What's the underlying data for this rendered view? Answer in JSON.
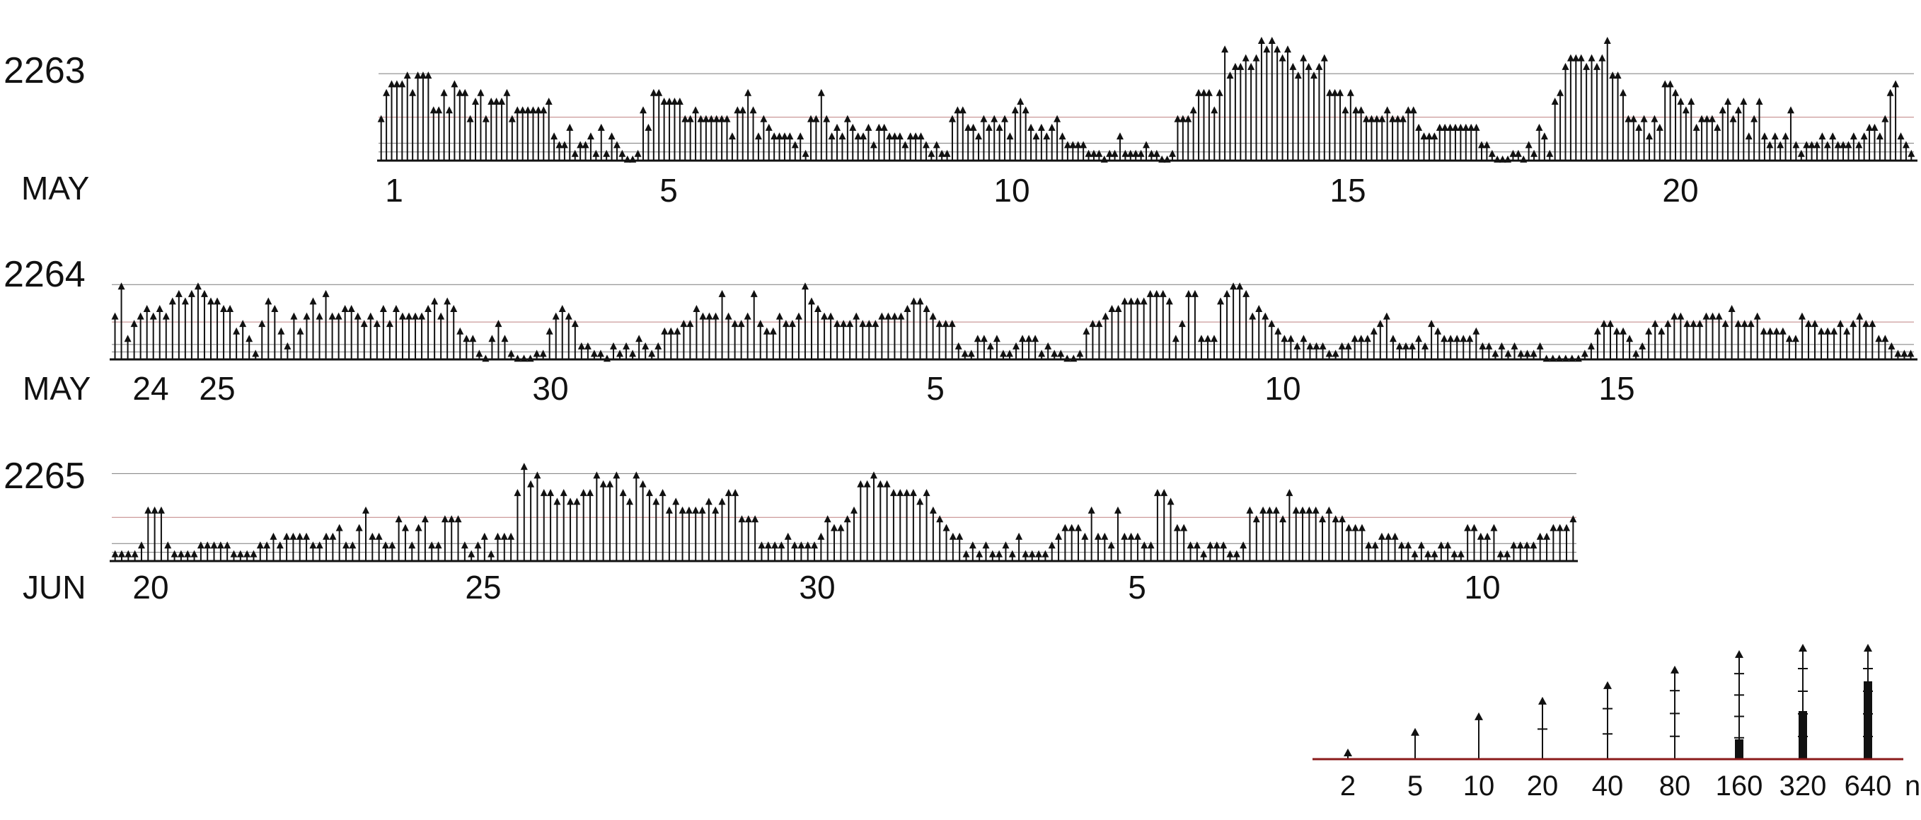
{
  "colors": {
    "ink": "#111111",
    "accent_line": "#8b1a1a",
    "baseline_tint": "#2a6b5a",
    "background": "#ffffff"
  },
  "chart_data": [
    {
      "type": "bar",
      "id": "rotation-2263",
      "rotation_label": "2263",
      "month_label": "MAY",
      "tick_labels": [
        "1",
        "5",
        "10",
        "15",
        "20"
      ],
      "x_range_days": [
        0,
        27
      ],
      "values": [
        5,
        8,
        9,
        9,
        9,
        10,
        8,
        10,
        10,
        10,
        6,
        6,
        8,
        6,
        9,
        8,
        8,
        5,
        7,
        8,
        5,
        7,
        7,
        7,
        8,
        5,
        6,
        6,
        6,
        6,
        6,
        6,
        7,
        3,
        2,
        2,
        4,
        1,
        2,
        2,
        3,
        1,
        4,
        1,
        3,
        2,
        1,
        0,
        0,
        1,
        6,
        4,
        8,
        8,
        7,
        7,
        7,
        7,
        5,
        5,
        6,
        5,
        5,
        5,
        5,
        5,
        5,
        3,
        6,
        6,
        8,
        6,
        3,
        5,
        4,
        3,
        3,
        3,
        3,
        2,
        3,
        1,
        5,
        5,
        8,
        5,
        3,
        4,
        3,
        5,
        4,
        3,
        3,
        4,
        2,
        4,
        4,
        3,
        3,
        3,
        2,
        3,
        3,
        3,
        2,
        1,
        2,
        1,
        1,
        5,
        6,
        6,
        4,
        4,
        3,
        5,
        4,
        5,
        4,
        5,
        3,
        6,
        7,
        6,
        4,
        3,
        4,
        3,
        4,
        5,
        3,
        2,
        2,
        2,
        2,
        1,
        1,
        1,
        0,
        1,
        1,
        3,
        1,
        1,
        1,
        1,
        2,
        1,
        1,
        0,
        0,
        1,
        5,
        5,
        5,
        6,
        8,
        8,
        8,
        6,
        8,
        13,
        10,
        11,
        11,
        12,
        11,
        12,
        14,
        13,
        14,
        13,
        12,
        13,
        11,
        10,
        12,
        11,
        10,
        11,
        12,
        8,
        8,
        8,
        6,
        8,
        6,
        6,
        5,
        5,
        5,
        5,
        6,
        5,
        5,
        5,
        6,
        6,
        4,
        3,
        3,
        3,
        4,
        4,
        4,
        4,
        4,
        4,
        4,
        4,
        2,
        2,
        1,
        0,
        0,
        0,
        1,
        1,
        0,
        2,
        1,
        4,
        3,
        1,
        7,
        8,
        11,
        12,
        12,
        12,
        11,
        12,
        11,
        12,
        14,
        10,
        10,
        8,
        5,
        5,
        4,
        5,
        3,
        5,
        4,
        9,
        9,
        8,
        7,
        6,
        7,
        4,
        5,
        5,
        5,
        4,
        6,
        7,
        5,
        6,
        7,
        3,
        5,
        7,
        3,
        2,
        3,
        2,
        3,
        6,
        2,
        1,
        2,
        2,
        2,
        3,
        2,
        3,
        2,
        2,
        2,
        3,
        2,
        3,
        4,
        4,
        3,
        5,
        8,
        9,
        3,
        2,
        1
      ],
      "ylim": [
        0,
        14
      ],
      "grid_levels": [
        1,
        2,
        5,
        10
      ]
    },
    {
      "type": "bar",
      "id": "rotation-2264",
      "rotation_label": "2264",
      "month_label": "MAY",
      "tick_labels": [
        "24",
        "25",
        "30",
        "5",
        "10",
        "15"
      ],
      "x_range_days": [
        0,
        27
      ],
      "values": [
        6,
        10,
        3,
        5,
        6,
        7,
        6,
        7,
        6,
        8,
        9,
        8,
        9,
        10,
        9,
        8,
        8,
        7,
        7,
        4,
        5,
        3,
        1,
        5,
        8,
        7,
        4,
        2,
        6,
        4,
        6,
        8,
        6,
        9,
        6,
        6,
        7,
        7,
        6,
        5,
        6,
        5,
        7,
        5,
        7,
        6,
        6,
        6,
        6,
        7,
        8,
        6,
        8,
        7,
        4,
        3,
        3,
        1,
        0,
        3,
        5,
        3,
        1,
        0,
        0,
        0,
        1,
        1,
        4,
        6,
        7,
        6,
        5,
        2,
        2,
        1,
        1,
        0,
        2,
        1,
        2,
        1,
        3,
        2,
        1,
        2,
        4,
        4,
        4,
        5,
        5,
        7,
        6,
        6,
        6,
        9,
        6,
        5,
        5,
        6,
        9,
        5,
        4,
        4,
        6,
        5,
        5,
        6,
        10,
        8,
        7,
        6,
        6,
        5,
        5,
        5,
        6,
        5,
        5,
        5,
        6,
        6,
        6,
        6,
        7,
        8,
        8,
        7,
        6,
        5,
        5,
        5,
        2,
        1,
        1,
        3,
        3,
        2,
        3,
        1,
        1,
        2,
        3,
        3,
        3,
        1,
        2,
        1,
        1,
        0,
        0,
        1,
        4,
        5,
        5,
        6,
        7,
        7,
        8,
        8,
        8,
        8,
        9,
        9,
        9,
        8,
        3,
        5,
        9,
        9,
        3,
        3,
        3,
        8,
        9,
        10,
        10,
        9,
        6,
        7,
        6,
        5,
        4,
        3,
        3,
        2,
        3,
        2,
        2,
        2,
        1,
        1,
        2,
        2,
        3,
        3,
        3,
        4,
        5,
        6,
        3,
        2,
        2,
        2,
        3,
        2,
        5,
        4,
        3,
        3,
        3,
        3,
        3,
        4,
        2,
        2,
        1,
        2,
        1,
        2,
        1,
        1,
        1,
        2,
        0,
        0,
        0,
        0,
        0,
        0,
        1,
        2,
        4,
        5,
        5,
        4,
        4,
        3,
        1,
        2,
        4,
        5,
        4,
        5,
        6,
        6,
        5,
        5,
        5,
        6,
        6,
        6,
        5,
        7,
        5,
        5,
        5,
        6,
        4,
        4,
        4,
        4,
        3,
        3,
        6,
        5,
        5,
        4,
        4,
        4,
        5,
        4,
        5,
        6,
        5,
        5,
        3,
        3,
        2,
        1,
        1,
        1
      ],
      "ylim": [
        0,
        14
      ],
      "grid_levels": [
        1,
        2,
        5,
        10
      ]
    },
    {
      "type": "bar",
      "id": "rotation-2265",
      "rotation_label": "2265",
      "month_label": "JUN",
      "tick_labels": [
        "20",
        "25",
        "30",
        "5",
        "10"
      ],
      "x_range_days": [
        0,
        22
      ],
      "values": [
        1,
        1,
        1,
        1,
        2,
        6,
        6,
        6,
        2,
        1,
        1,
        1,
        1,
        2,
        2,
        2,
        2,
        2,
        1,
        1,
        1,
        1,
        2,
        2,
        3,
        2,
        3,
        3,
        3,
        3,
        2,
        2,
        3,
        3,
        4,
        2,
        2,
        4,
        6,
        3,
        3,
        2,
        2,
        5,
        4,
        2,
        4,
        5,
        2,
        2,
        5,
        5,
        5,
        2,
        1,
        2,
        3,
        1,
        3,
        3,
        3,
        8,
        11,
        9,
        10,
        8,
        8,
        7,
        8,
        7,
        7,
        8,
        8,
        10,
        9,
        9,
        10,
        8,
        7,
        10,
        9,
        8,
        7,
        8,
        6,
        7,
        6,
        6,
        6,
        6,
        7,
        6,
        7,
        8,
        8,
        5,
        5,
        5,
        2,
        2,
        2,
        2,
        3,
        2,
        2,
        2,
        2,
        3,
        5,
        4,
        4,
        5,
        6,
        9,
        9,
        10,
        9,
        9,
        8,
        8,
        8,
        8,
        7,
        8,
        6,
        5,
        4,
        3,
        3,
        1,
        2,
        1,
        2,
        1,
        1,
        2,
        1,
        3,
        1,
        1,
        1,
        1,
        2,
        3,
        4,
        4,
        4,
        3,
        6,
        3,
        3,
        2,
        6,
        3,
        3,
        3,
        2,
        2,
        8,
        8,
        7,
        4,
        4,
        2,
        2,
        1,
        2,
        2,
        2,
        1,
        1,
        2,
        6,
        5,
        6,
        6,
        6,
        5,
        8,
        6,
        6,
        6,
        6,
        5,
        6,
        5,
        5,
        4,
        4,
        4,
        2,
        2,
        3,
        3,
        3,
        2,
        2,
        1,
        2,
        1,
        1,
        2,
        2,
        1,
        1,
        4,
        4,
        3,
        3,
        4,
        1,
        1,
        2,
        2,
        2,
        2,
        3,
        3,
        4,
        4,
        4,
        5
      ],
      "ylim": [
        0,
        14
      ],
      "grid_levels": [
        1,
        2,
        5,
        10
      ]
    },
    {
      "type": "bar",
      "id": "scale-key",
      "categories": [
        "2",
        "5",
        "10",
        "20",
        "40",
        "80",
        "160",
        "320",
        "640"
      ],
      "values": [
        2,
        5,
        10,
        20,
        40,
        80,
        160,
        320,
        640
      ],
      "unit_label": "n"
    }
  ]
}
